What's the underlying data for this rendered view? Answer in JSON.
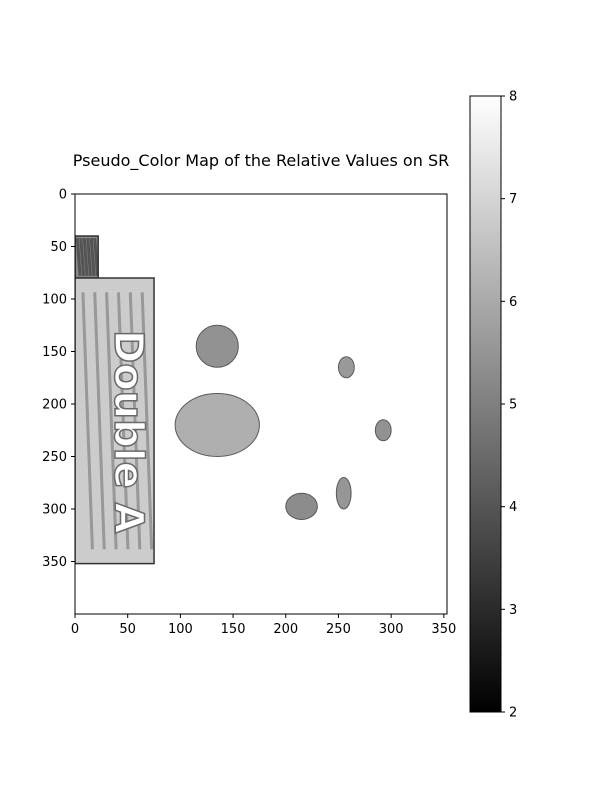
{
  "chart_data": {
    "type": "heatmap",
    "title": "Pseudo_Color Map of the Relative Values on SR",
    "xlabel": "",
    "ylabel": "",
    "xlim": [
      0,
      353
    ],
    "ylim": [
      400,
      0
    ],
    "x_ticks": [
      0,
      50,
      100,
      150,
      200,
      250,
      300,
      350
    ],
    "y_ticks": [
      0,
      50,
      100,
      150,
      200,
      250,
      300,
      350
    ],
    "x_tick_labels": [
      "0",
      "50",
      "100",
      "150",
      "200",
      "250",
      "300",
      "350"
    ],
    "y_tick_labels": [
      "0",
      "50",
      "100",
      "150",
      "200",
      "250",
      "300",
      "350"
    ],
    "colormap": "gray",
    "colorbar": {
      "min": 2,
      "max": 8,
      "ticks": [
        2,
        3,
        4,
        5,
        6,
        7,
        8
      ],
      "tick_labels": [
        "2",
        "3",
        "4",
        "5",
        "6",
        "7",
        "8"
      ],
      "placement": "right"
    },
    "grid": false,
    "box_text": "Double A",
    "regions": [
      {
        "name": "package-top-block",
        "x": [
          0,
          22
        ],
        "y": [
          40,
          80
        ],
        "value": 5.2
      },
      {
        "name": "package-main",
        "x": [
          0,
          75
        ],
        "y": [
          80,
          352
        ],
        "value": 6.8
      },
      {
        "name": "leaf-left",
        "x": [
          115,
          155
        ],
        "y": [
          125,
          165
        ],
        "value": 4.6
      },
      {
        "name": "stem-center",
        "x": [
          95,
          175
        ],
        "y": [
          190,
          250
        ],
        "value": 5.5
      },
      {
        "name": "leaf-right-top",
        "x": [
          250,
          265
        ],
        "y": [
          155,
          175
        ],
        "value": 4.8
      },
      {
        "name": "leaf-right",
        "x": [
          285,
          300
        ],
        "y": [
          215,
          235
        ],
        "value": 4.6
      },
      {
        "name": "leaf-bottom-left",
        "x": [
          200,
          230
        ],
        "y": [
          285,
          310
        ],
        "value": 4.4
      },
      {
        "name": "leaf-bottom-right",
        "x": [
          248,
          262
        ],
        "y": [
          270,
          300
        ],
        "value": 4.7
      }
    ]
  }
}
